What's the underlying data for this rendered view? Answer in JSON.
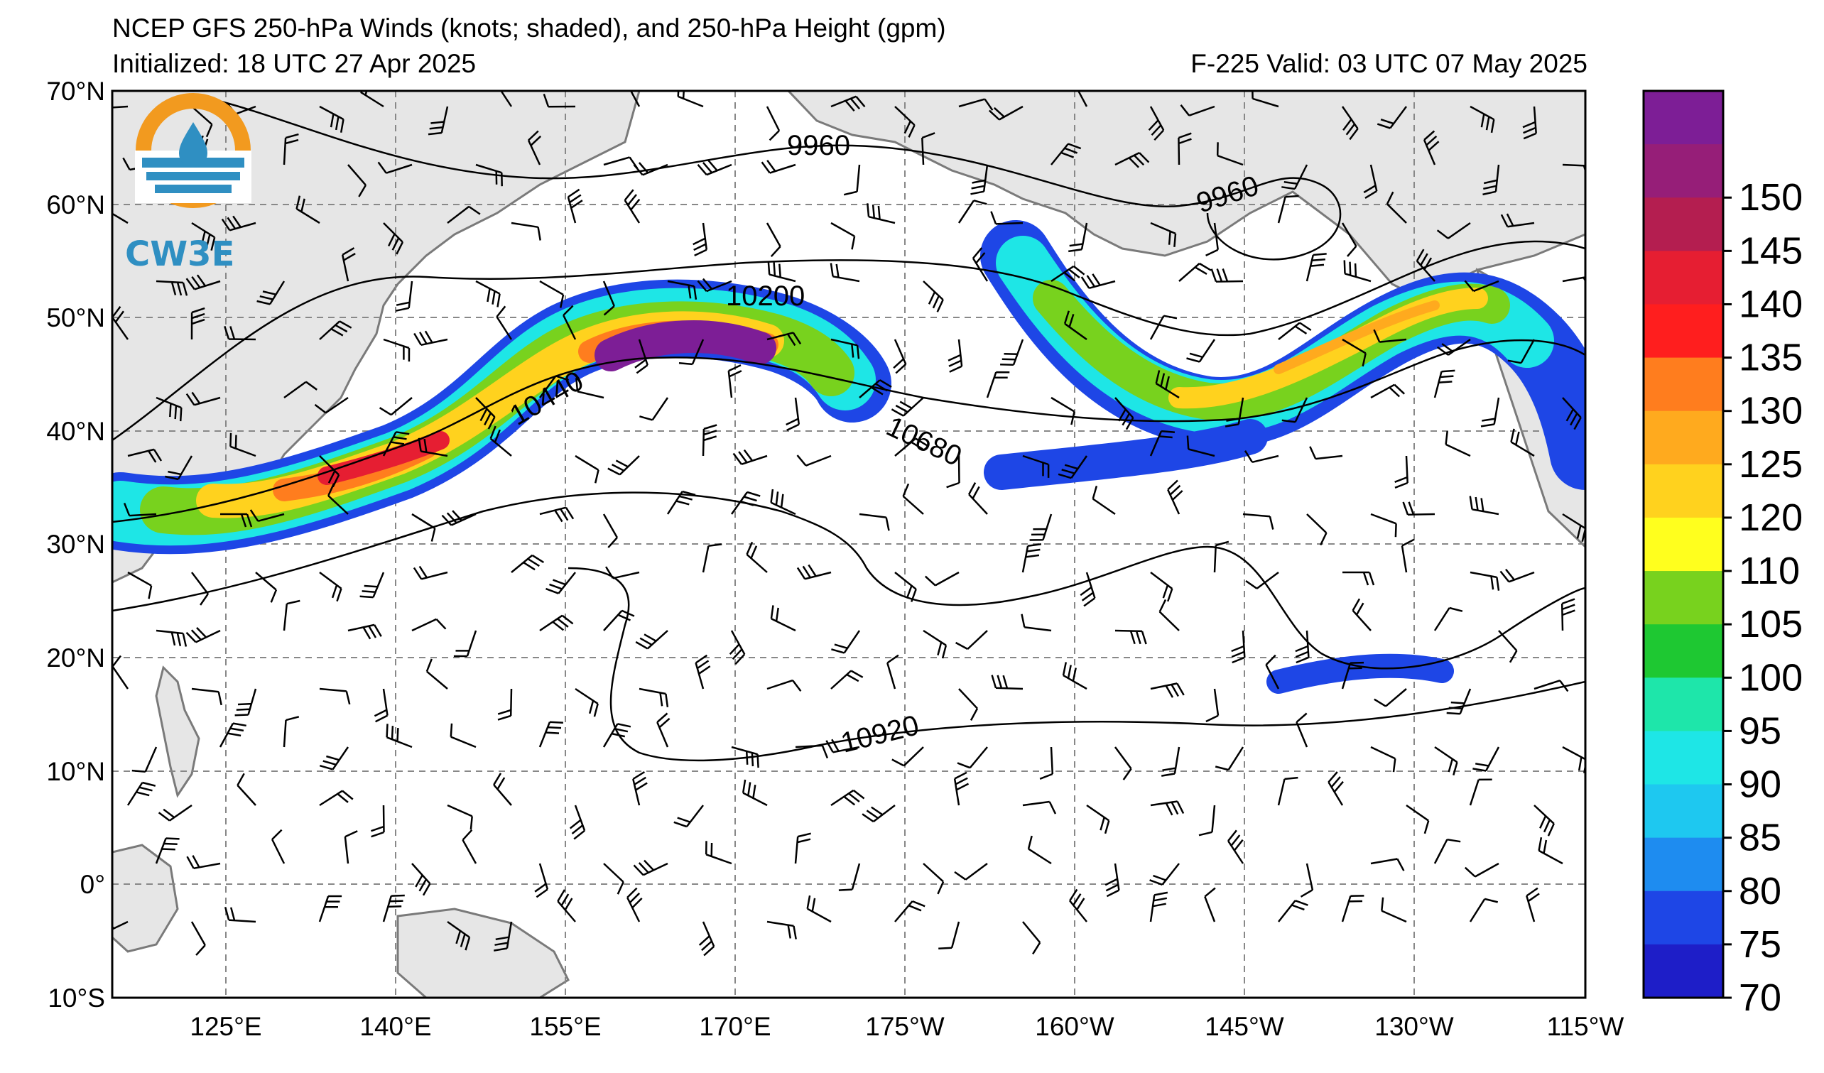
{
  "header": {
    "title": "NCEP GFS 250-hPa Winds (knots; shaded), and 250-hPa Height (gpm)",
    "initialized": "Initialized: 18 UTC 27 Apr 2025",
    "valid": "F-225  Valid: 03 UTC 07 May 2025"
  },
  "logo": {
    "text": "CW3E"
  },
  "map": {
    "lat_labels": [
      "70°N",
      "60°N",
      "50°N",
      "40°N",
      "30°N",
      "20°N",
      "10°N",
      "0°",
      "10°S"
    ],
    "lon_labels": [
      "125°E",
      "140°E",
      "155°E",
      "170°E",
      "175°W",
      "160°W",
      "145°W",
      "130°W",
      "115°W"
    ],
    "contour_labels": [
      "9960",
      "9960",
      "10200",
      "10440",
      "10680",
      "10920"
    ]
  },
  "colorbar": {
    "ticks": [
      "70",
      "75",
      "80",
      "85",
      "90",
      "95",
      "100",
      "105",
      "110",
      "120",
      "125",
      "130",
      "135",
      "140",
      "145",
      "150"
    ],
    "colors": [
      "#1e1ec8",
      "#1e46e6",
      "#1e8cf0",
      "#1ec8f0",
      "#1ee6e6",
      "#1ee6aa",
      "#1ec832",
      "#78d21e",
      "#ffff1e",
      "#ffd21e",
      "#ffaa1e",
      "#ff7d1e",
      "#ff1e1e",
      "#e61e32",
      "#b41e50",
      "#961e78",
      "#7d1e96"
    ]
  }
}
